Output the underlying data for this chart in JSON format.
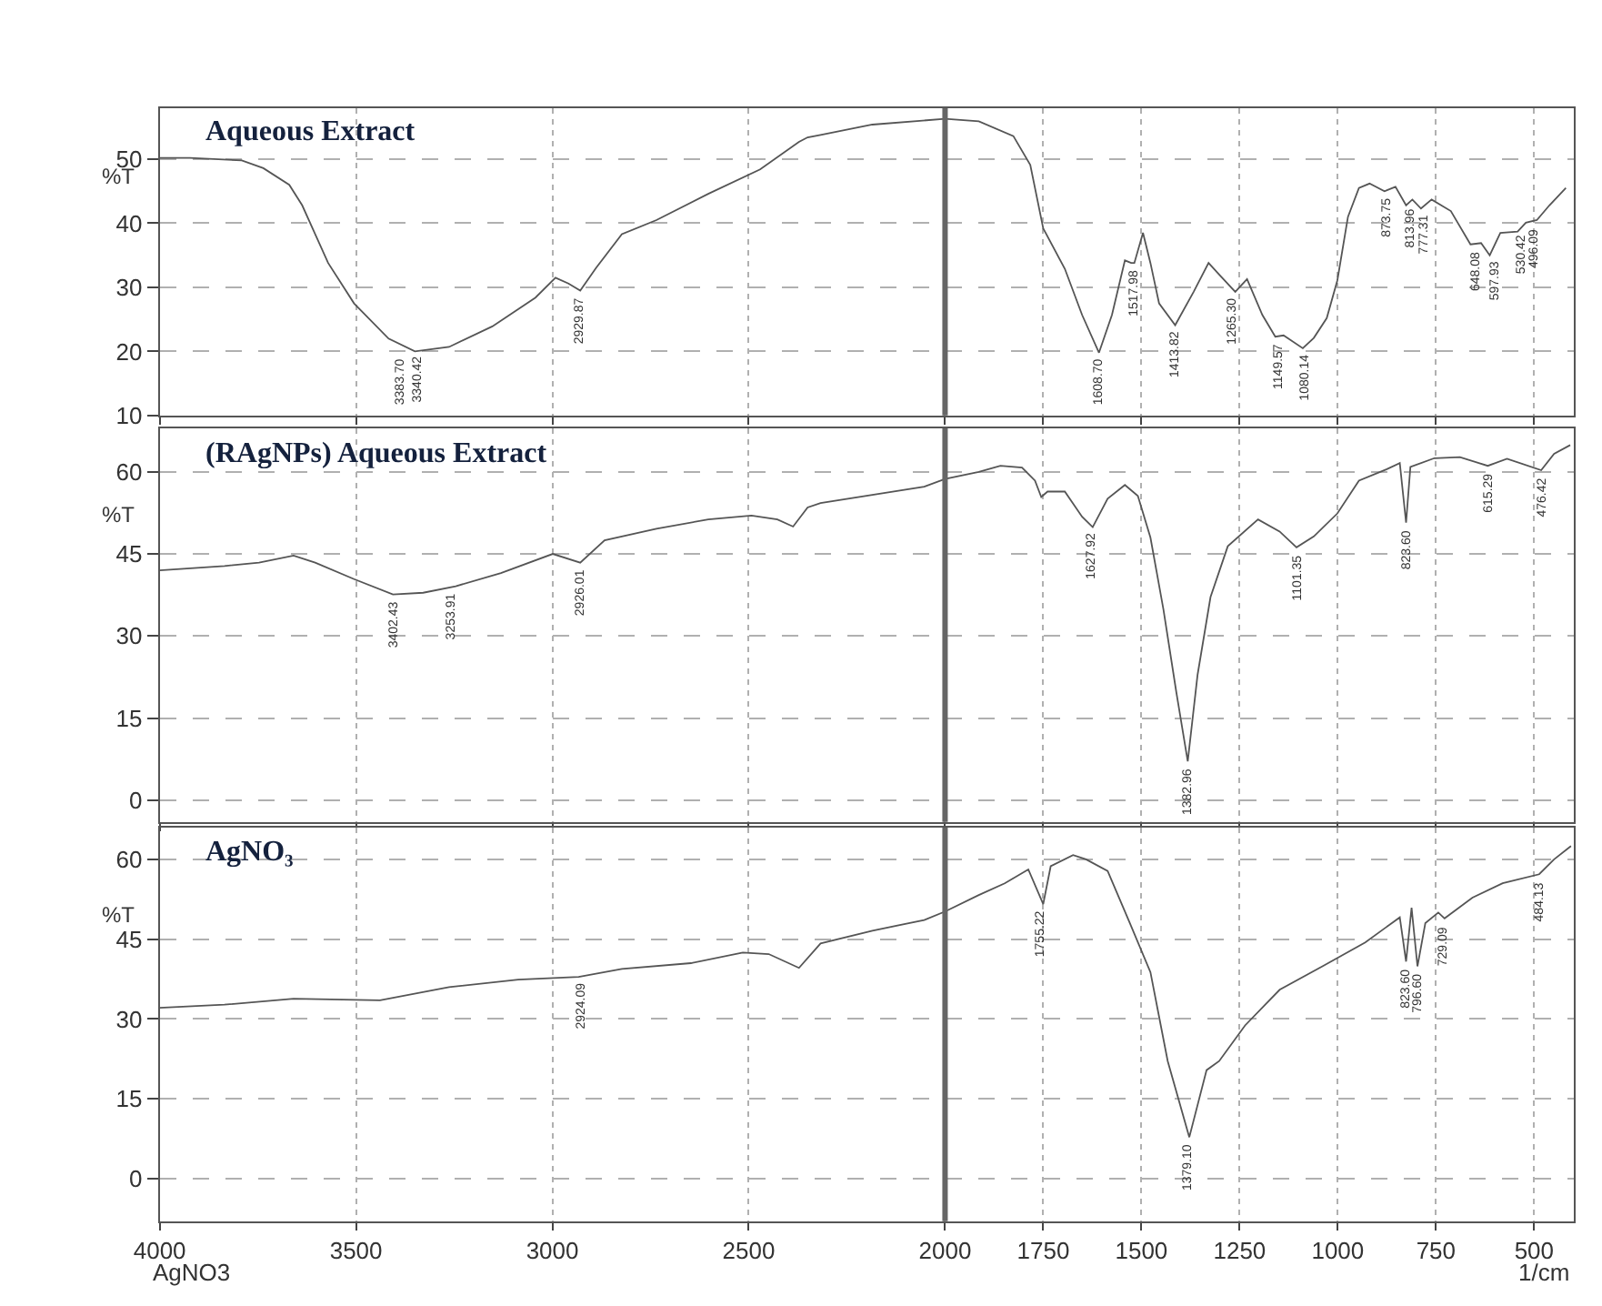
{
  "chart_data": [
    {
      "type": "line",
      "title": "Aqueous Extract",
      "ylabel": "%T",
      "xlim": [
        4000,
        400
      ],
      "xticks": [
        4000,
        3500,
        3000,
        2500,
        2000,
        1750,
        1500,
        1250,
        1000,
        750,
        500
      ],
      "ylim": [
        10,
        58
      ],
      "yticks": [
        10,
        20,
        30,
        40,
        50
      ],
      "grid": true,
      "tick_labels": "y",
      "x": [
        4000,
        3923,
        3791,
        3736,
        3670,
        3637,
        3571,
        3505,
        3417,
        3350,
        3263,
        3153,
        3043,
        2992,
        2959,
        2929,
        2889,
        2823,
        2735,
        2603,
        2471,
        2372,
        2350,
        2317,
        2185,
        2000,
        1914,
        1826,
        1783,
        1750,
        1695,
        1651,
        1608,
        1575,
        1542,
        1526,
        1518,
        1496,
        1477,
        1455,
        1414,
        1367,
        1329,
        1302,
        1261,
        1231,
        1192,
        1159,
        1138,
        1089,
        1061,
        1028,
        1001,
        974,
        946,
        919,
        881,
        853,
        826,
        810,
        788,
        761,
        712,
        662,
        635,
        613,
        586,
        542,
        521,
        493,
        461,
        419
      ],
      "series": [
        {
          "color": "#555555",
          "values": [
            50.2,
            50.2,
            49.8,
            48.6,
            46,
            42.8,
            33.8,
            27.5,
            22,
            20,
            20.7,
            23.9,
            28.4,
            31.5,
            30.6,
            29.5,
            33,
            38.3,
            40.5,
            44.6,
            48.4,
            52.7,
            53.4,
            53.8,
            55.4,
            56.3,
            55.9,
            53.6,
            49.1,
            39.2,
            32.9,
            25.7,
            19.8,
            25.7,
            34.2,
            33.8,
            33.8,
            38.5,
            33.8,
            27.5,
            24.1,
            29.3,
            33.8,
            32,
            29.3,
            31.3,
            25.7,
            22.3,
            22.5,
            20.5,
            22.1,
            25.2,
            31.1,
            41,
            45.5,
            46.2,
            45,
            45.7,
            42.8,
            43.7,
            42.3,
            43.7,
            41.9,
            36.7,
            36.9,
            35,
            38.5,
            38.7,
            40.1,
            40.5,
            42.8,
            45.5
          ]
        }
      ],
      "ref_lines": [
        {
          "axis": "x",
          "value": 2000,
          "color": "#666666"
        }
      ],
      "annotations": [
        {
          "text": "3383.70",
          "x": 3383.7,
          "y": 20
        },
        {
          "text": "3340.42",
          "x": 3340.42,
          "y": 20.2
        },
        {
          "text": "2929.87",
          "x": 2929.87,
          "y": 29.5
        },
        {
          "text": "1608.70",
          "x": 1608.7,
          "y": 19.8
        },
        {
          "text": "1517.98",
          "x": 1517.98,
          "y": 33.8
        },
        {
          "text": "1413.82",
          "x": 1413.82,
          "y": 24.1
        },
        {
          "text": "1265.30",
          "x": 1265.3,
          "y": 29.3
        },
        {
          "text": "1149.57",
          "x": 1149.57,
          "y": 22.3
        },
        {
          "text": "1080.14",
          "x": 1080.14,
          "y": 20.5
        },
        {
          "text": "873.75",
          "x": 873.75,
          "y": 45.2
        },
        {
          "text": "813.96",
          "x": 813.96,
          "y": 43.5
        },
        {
          "text": "777.31",
          "x": 777.31,
          "y": 42.5
        },
        {
          "text": "648.08",
          "x": 648.08,
          "y": 36.7
        },
        {
          "text": "597.93",
          "x": 597.93,
          "y": 35.2
        },
        {
          "text": "530.42",
          "x": 530.42,
          "y": 39.5
        },
        {
          "text": "496.09",
          "x": 496.09,
          "y": 40.5
        }
      ]
    },
    {
      "type": "line",
      "title": "(RAgNPs) Aqueous Extract",
      "ylabel": "%T",
      "xlim": [
        4000,
        400
      ],
      "xticks": [
        4000,
        3500,
        3000,
        2500,
        2000,
        1750,
        1500,
        1250,
        1000,
        750,
        500
      ],
      "ylim": [
        -4,
        68
      ],
      "yticks": [
        0,
        15,
        30,
        45,
        60
      ],
      "grid": true,
      "tick_labels": "y",
      "x": [
        4000,
        3835,
        3747,
        3659,
        3604,
        3505,
        3406,
        3329,
        3246,
        3131,
        2999,
        2929,
        2867,
        2735,
        2603,
        2493,
        2427,
        2387,
        2350,
        2317,
        2053,
        2000,
        1914,
        1859,
        1804,
        1771,
        1755,
        1739,
        1695,
        1651,
        1624,
        1586,
        1542,
        1509,
        1477,
        1444,
        1411,
        1382,
        1357,
        1324,
        1280,
        1203,
        1148,
        1105,
        1061,
        1001,
        946,
        875,
        842,
        826,
        815,
        754,
        689,
        618,
        569,
        482,
        449,
        408
      ],
      "series": [
        {
          "color": "#555555",
          "values": [
            42,
            42.8,
            43.4,
            44.7,
            43.4,
            40.4,
            37.6,
            37.9,
            39.1,
            41.5,
            45,
            43.4,
            47.5,
            49.6,
            51.3,
            52,
            51.3,
            50,
            53.5,
            54.3,
            57.3,
            58.7,
            60,
            61.1,
            60.8,
            58.4,
            55.4,
            56.4,
            56.4,
            51.8,
            49.9,
            55.1,
            57.6,
            55.6,
            48,
            34.9,
            19.7,
            7.1,
            22.9,
            37.1,
            46.4,
            51.3,
            49.1,
            46.2,
            48.2,
            52.4,
            58.4,
            60.5,
            61.6,
            50.7,
            60.9,
            62.5,
            62.7,
            61.1,
            62.4,
            60.3,
            63.3,
            64.9
          ]
        }
      ],
      "ref_lines": [
        {
          "axis": "x",
          "value": 2000,
          "color": "#666666"
        }
      ],
      "annotations": [
        {
          "text": "3402.43",
          "x": 3402.43,
          "y": 37.6
        },
        {
          "text": "3253.91",
          "x": 3253.91,
          "y": 39.1
        },
        {
          "text": "2926.01",
          "x": 2926.01,
          "y": 43.4
        },
        {
          "text": "1627.92",
          "x": 1627.92,
          "y": 49.9
        },
        {
          "text": "1382.96",
          "x": 1382.96,
          "y": 7.1
        },
        {
          "text": "1101.35",
          "x": 1101.35,
          "y": 46.2
        },
        {
          "text": "823.60",
          "x": 823.6,
          "y": 50.7
        },
        {
          "text": "615.29",
          "x": 615.29,
          "y": 61.1
        },
        {
          "text": "476.42",
          "x": 476.42,
          "y": 60.3
        }
      ]
    },
    {
      "type": "line",
      "title": "AgNO₃",
      "ylabel": "%T",
      "xlabel": "1/cm",
      "xlim": [
        4000,
        400
      ],
      "xticks": [
        4000,
        3500,
        3000,
        2500,
        2000,
        1750,
        1500,
        1250,
        1000,
        750,
        500
      ],
      "ylim": [
        -8,
        66
      ],
      "yticks": [
        0,
        15,
        30,
        45,
        60
      ],
      "grid": true,
      "x": [
        4000,
        3835,
        3659,
        3439,
        3263,
        3087,
        2933,
        2823,
        2647,
        2515,
        2449,
        2372,
        2317,
        2185,
        2053,
        2000,
        1914,
        1848,
        1788,
        1750,
        1731,
        1674,
        1641,
        1586,
        1531,
        1477,
        1433,
        1378,
        1334,
        1302,
        1236,
        1148,
        1039,
        930,
        842,
        826,
        812,
        797,
        777,
        744,
        728,
        657,
        580,
        487,
        449,
        406
      ],
      "series": [
        {
          "color": "#555555",
          "values": [
            32.1,
            32.7,
            33.8,
            33.5,
            36,
            37.4,
            37.9,
            39.4,
            40.5,
            42.5,
            42.2,
            39.6,
            44.2,
            46.6,
            48.6,
            50.2,
            53.3,
            55.5,
            58.1,
            51.6,
            58.7,
            60.8,
            60,
            57.8,
            48.3,
            38.8,
            22.1,
            7.8,
            20.4,
            22.1,
            28.8,
            35.5,
            39.9,
            44.4,
            49.1,
            40.8,
            50.9,
            39.9,
            48,
            50,
            48.9,
            52.8,
            55.5,
            57.2,
            60,
            62.5
          ]
        }
      ],
      "ref_lines": [
        {
          "axis": "x",
          "value": 2000,
          "color": "#666666"
        }
      ],
      "annotations": [
        "AgNO3",
        {
          "text": "2924.09",
          "x": 2924.09,
          "y": 37.9
        },
        {
          "text": "1755.22",
          "x": 1755.22,
          "y": 51.6
        },
        {
          "text": "1379.10",
          "x": 1379.1,
          "y": 7.8
        },
        {
          "text": "823.60",
          "x": 823.6,
          "y": 40.8
        },
        {
          "text": "796.60",
          "x": 796.6,
          "y": 39.9
        },
        {
          "text": "729.09",
          "x": 729.09,
          "y": 48.9
        },
        {
          "text": "484.13",
          "x": 484.13,
          "y": 57.2
        }
      ]
    }
  ]
}
